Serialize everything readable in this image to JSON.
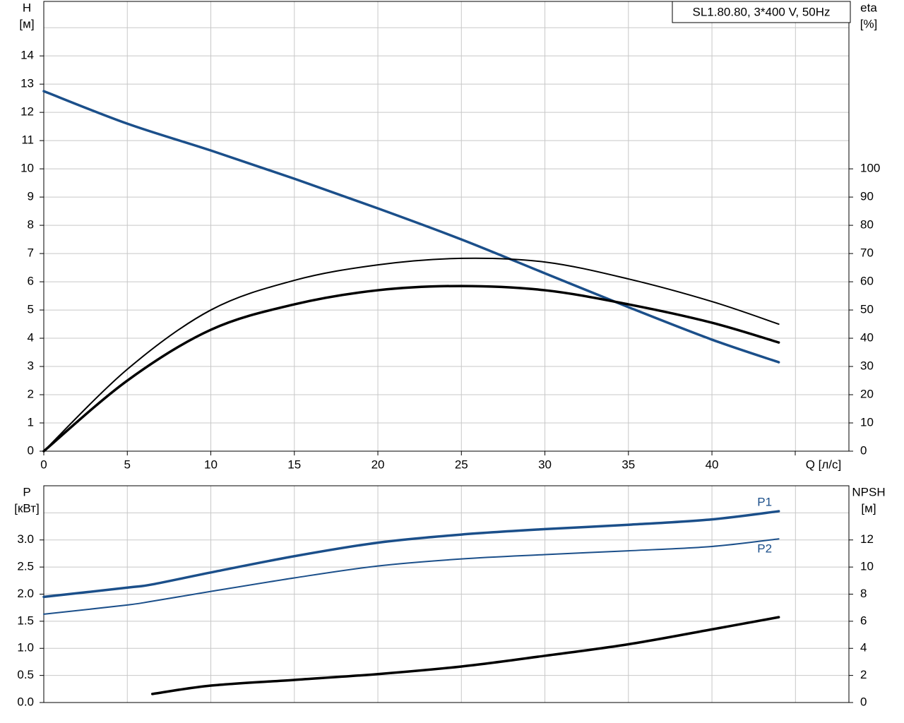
{
  "chart_data": [
    {
      "type": "line",
      "title": "SL1.80.80, 3*400 V, 50Hz",
      "ylabel": [
        "H",
        "[м]"
      ],
      "y2label": [
        "eta",
        "[%]"
      ],
      "xlabel": "Q [л/с]",
      "x": [
        0,
        5,
        10,
        15,
        20,
        25,
        30,
        35,
        40,
        44
      ],
      "xlim": [
        0,
        48.2
      ],
      "xticks": [
        0,
        5,
        10,
        15,
        20,
        25,
        30,
        35,
        40
      ],
      "ylim": [
        0,
        15.93
      ],
      "yticks": [
        0,
        1,
        2,
        3,
        4,
        5,
        6,
        7,
        8,
        9,
        10,
        11,
        12,
        13,
        14
      ],
      "y2lim": [
        0,
        159.3
      ],
      "y2ticks": [
        0,
        10,
        20,
        30,
        40,
        50,
        60,
        70,
        80,
        90,
        100
      ],
      "grid": true,
      "series": [
        {
          "color": "#1b4f8a",
          "linewidth": 3.5,
          "values": [
            12.75,
            11.6,
            10.65,
            9.65,
            8.6,
            7.5,
            6.3,
            5.1,
            3.95,
            3.15
          ]
        },
        {
          "color": "#000000",
          "linewidth": 2,
          "axis": "y2",
          "values": [
            0,
            29,
            50,
            60.5,
            66,
            68.3,
            67,
            61,
            53,
            45
          ]
        },
        {
          "color": "#000000",
          "linewidth": 3.5,
          "axis": "y2",
          "values": [
            0,
            25,
            43,
            52,
            57,
            58.5,
            57,
            52,
            45.5,
            38.5
          ]
        }
      ]
    },
    {
      "type": "line",
      "ylabel": [
        "P",
        "[кВт]"
      ],
      "y2label": [
        "NPSH",
        "[м]"
      ],
      "x": [
        0,
        5,
        6.5,
        10,
        15,
        20,
        25,
        30,
        35,
        40,
        44
      ],
      "xlim": [
        0,
        48.2
      ],
      "ylim": [
        0,
        4.0
      ],
      "yticks": [
        {
          "value": 0,
          "label": "0.0"
        },
        {
          "value": 0.5,
          "label": "0.5"
        },
        {
          "value": 1,
          "label": "1.0"
        },
        {
          "value": 1.5,
          "label": "1.5"
        },
        {
          "value": 2,
          "label": "2.0"
        },
        {
          "value": 2.5,
          "label": "2.5"
        },
        {
          "value": 3,
          "label": "3.0"
        }
      ],
      "y2lim": [
        0,
        16
      ],
      "y2ticks": [
        0,
        2,
        4,
        6,
        8,
        10,
        12
      ],
      "grid": true,
      "series": [
        {
          "name": "P1",
          "color": "#1b4f8a",
          "linewidth": 3.5,
          "values": [
            1.95,
            2.12,
            2.18,
            2.4,
            2.7,
            2.95,
            3.1,
            3.2,
            3.28,
            3.38,
            3.53
          ]
        },
        {
          "name": "P2",
          "color": "#1b4f8a",
          "linewidth": 2,
          "values": [
            1.63,
            1.8,
            1.87,
            2.05,
            2.3,
            2.52,
            2.65,
            2.73,
            2.8,
            2.88,
            3.02
          ]
        },
        {
          "color": "#000000",
          "linewidth": 3.5,
          "axis": "y2",
          "values": [
            null,
            null,
            0.63,
            1.25,
            1.67,
            2.1,
            2.66,
            3.45,
            4.3,
            5.4,
            6.3
          ]
        }
      ]
    }
  ]
}
